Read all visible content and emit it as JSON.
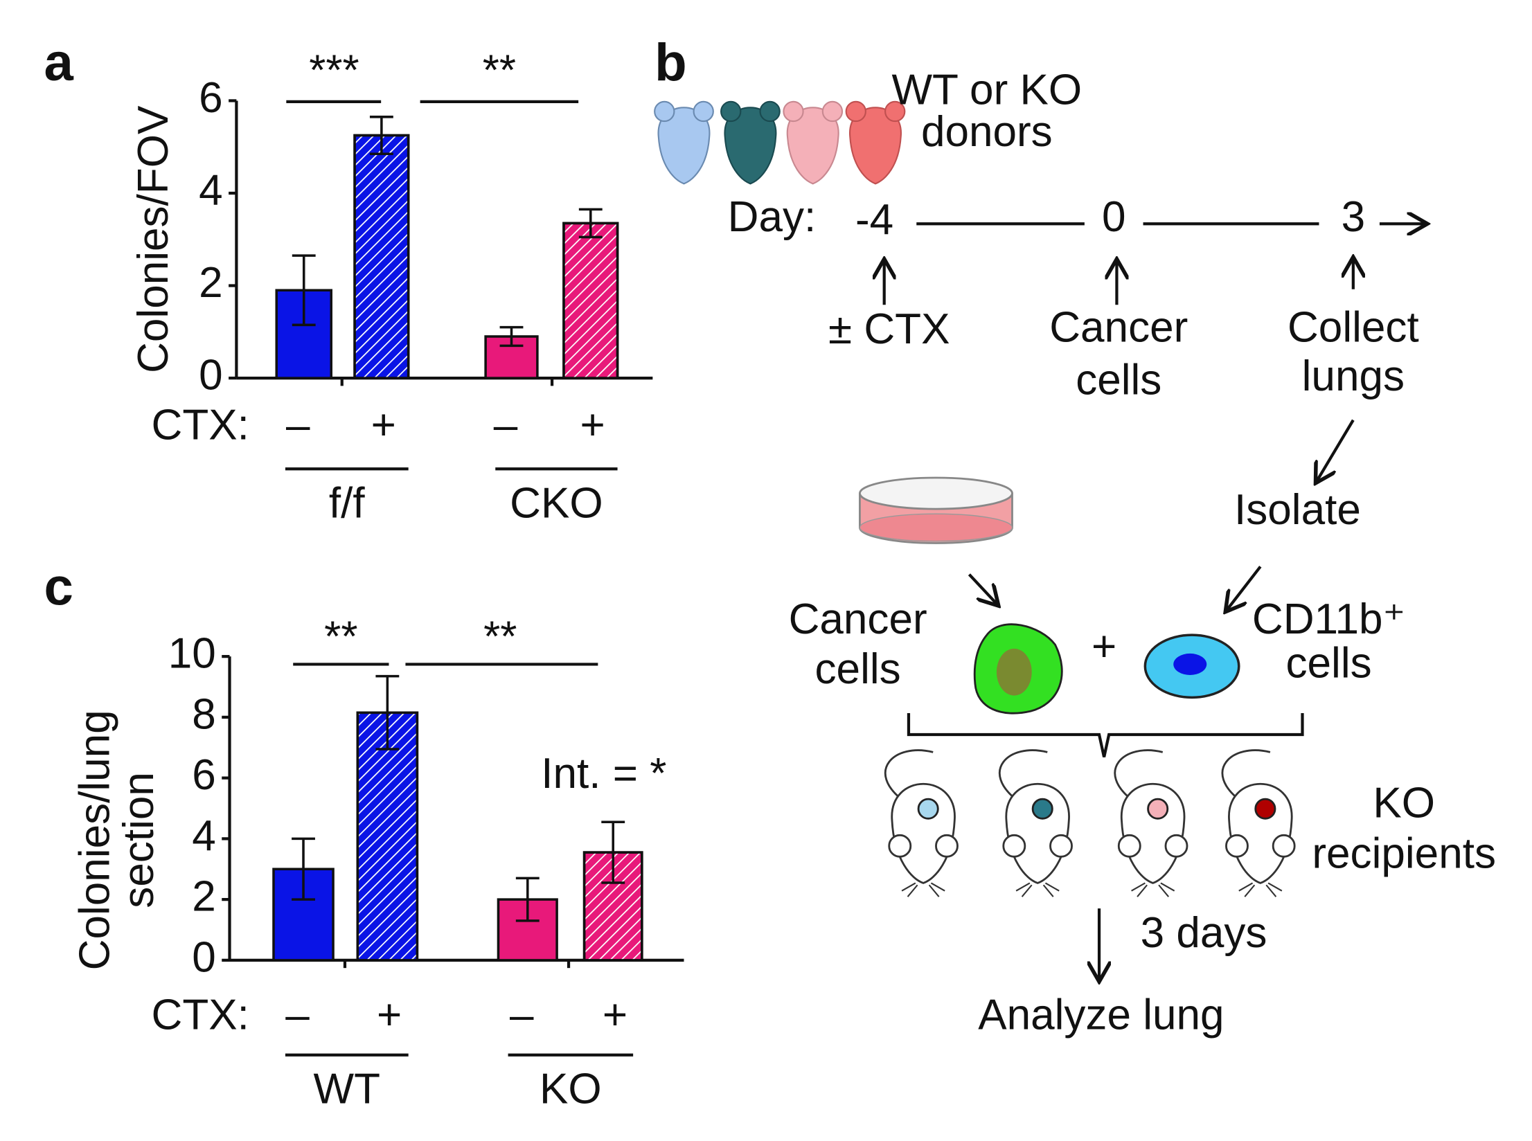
{
  "panels": [
    "a",
    "b",
    "c"
  ],
  "chart_data": [
    {
      "type": "bar",
      "ylabel": [
        "Colonies/FOV"
      ],
      "categories": [
        "–",
        "+",
        "–",
        "+"
      ],
      "x_prefix": "CTX:",
      "groups": [
        "f/f",
        "CKO"
      ],
      "values": [
        1.9,
        5.25,
        0.9,
        3.35
      ],
      "errors": [
        0.75,
        0.4,
        0.2,
        0.3
      ],
      "colors": [
        "#0a14e6",
        "#0a14e6",
        "#e8197a",
        "#e8197a"
      ],
      "hatched": [
        false,
        true,
        false,
        true
      ],
      "ylim": [
        0,
        6
      ],
      "yticks": [
        0,
        2,
        4,
        6
      ],
      "significance": [
        "***",
        "**"
      ]
    },
    {
      "type": "bar",
      "ylabel": [
        "Colonies/lung",
        "section"
      ],
      "categories": [
        "–",
        "+",
        "–",
        "+"
      ],
      "x_prefix": "CTX:",
      "groups": [
        "WT",
        "KO"
      ],
      "values": [
        3.0,
        8.15,
        2.0,
        3.55
      ],
      "errors": [
        1.0,
        1.2,
        0.7,
        1.0
      ],
      "colors": [
        "#0a14e6",
        "#0a14e6",
        "#e8197a",
        "#e8197a"
      ],
      "hatched": [
        false,
        true,
        false,
        true
      ],
      "ylim": [
        0,
        10
      ],
      "yticks": [
        0,
        2,
        4,
        6,
        8,
        10
      ],
      "significance": [
        "**",
        "**"
      ],
      "annotation": "Int. = *"
    }
  ],
  "diagram": {
    "donors_label": [
      "WT or KO",
      "donors"
    ],
    "day_label": "Day:",
    "days": [
      "-4",
      "0",
      "3"
    ],
    "steps": [
      [
        "± CTX"
      ],
      [
        "Cancer",
        "cells"
      ],
      [
        "Collect",
        "lungs"
      ]
    ],
    "isolate": "Isolate",
    "cancer_cells": [
      "Cancer",
      "cells"
    ],
    "plus": "+",
    "cd11b_cells": [
      "CD11b⁺",
      "cells"
    ],
    "recipients": [
      "KO",
      "recipients"
    ],
    "duration": "3 days",
    "analyze": "Analyze lung"
  }
}
